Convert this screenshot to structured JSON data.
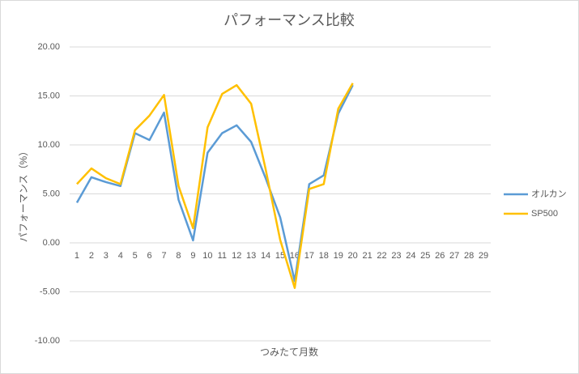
{
  "chart_data": {
    "type": "line",
    "title": "パフォーマンス比較",
    "x_label": "つみたて月数",
    "y_label": "パフォーマンス（%）",
    "categories": [
      1,
      2,
      3,
      4,
      5,
      6,
      7,
      8,
      9,
      10,
      11,
      12,
      13,
      14,
      15,
      16,
      17,
      18,
      19,
      20,
      21,
      22,
      23,
      24,
      25,
      26,
      27,
      28,
      29
    ],
    "series": [
      {
        "name": "オルカン",
        "color": "#5b9bd5",
        "values": [
          4.1,
          6.7,
          6.2,
          5.8,
          11.2,
          10.5,
          13.3,
          4.4,
          0.25,
          9.2,
          11.2,
          12.0,
          10.3,
          6.6,
          2.6,
          -3.9,
          6.0,
          6.9,
          13.2,
          16.1,
          null,
          null,
          null,
          null,
          null,
          null,
          null,
          null,
          null
        ]
      },
      {
        "name": "SP500",
        "color": "#ffc000",
        "values": [
          6.0,
          7.6,
          6.6,
          6.0,
          11.5,
          13.0,
          15.1,
          5.8,
          1.5,
          11.8,
          15.2,
          16.1,
          14.2,
          7.5,
          0.3,
          -4.6,
          5.5,
          6.0,
          13.7,
          16.3,
          null,
          null,
          null,
          null,
          null,
          null,
          null,
          null,
          null
        ]
      }
    ],
    "ylim": [
      -10,
      20
    ],
    "yticks": [
      {
        "value": -10,
        "label": "-10.00"
      },
      {
        "value": -5,
        "label": "-5.00"
      },
      {
        "value": 0,
        "label": "0.00"
      },
      {
        "value": 5,
        "label": "5.00"
      },
      {
        "value": 10,
        "label": "10.00"
      },
      {
        "value": 15,
        "label": "15.00"
      },
      {
        "value": 20,
        "label": "20.00"
      }
    ],
    "grid": true,
    "legend": "right"
  }
}
